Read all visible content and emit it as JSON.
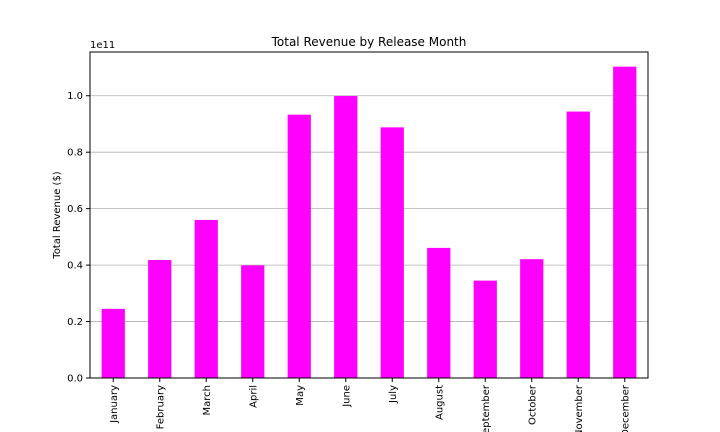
{
  "chart_data": {
    "type": "bar",
    "title": "Total Revenue by Release Month",
    "xlabel": "",
    "ylabel": "Total Revenue ($)",
    "scale_label": "1e11",
    "categories": [
      "January",
      "February",
      "March",
      "April",
      "May",
      "June",
      "July",
      "August",
      "September",
      "October",
      "November",
      "December"
    ],
    "values": [
      24500000000.0,
      41800000000.0,
      56000000000.0,
      39900000000.0,
      93300000000.0,
      99900000000.0,
      88800000000.0,
      46100000000.0,
      34500000000.0,
      42100000000.0,
      94400000000.0,
      110300000000.0
    ],
    "ylim": [
      0,
      115500000000.0
    ],
    "yticks": [
      0,
      20000000000.0,
      40000000000.0,
      60000000000.0,
      80000000000.0,
      100000000000.0
    ],
    "ytick_labels": [
      "0.0",
      "0.2",
      "0.4",
      "0.6",
      "0.8",
      "1.0"
    ],
    "bar_color": "#ff00ff",
    "grid": "horizontal",
    "legend": "none"
  }
}
